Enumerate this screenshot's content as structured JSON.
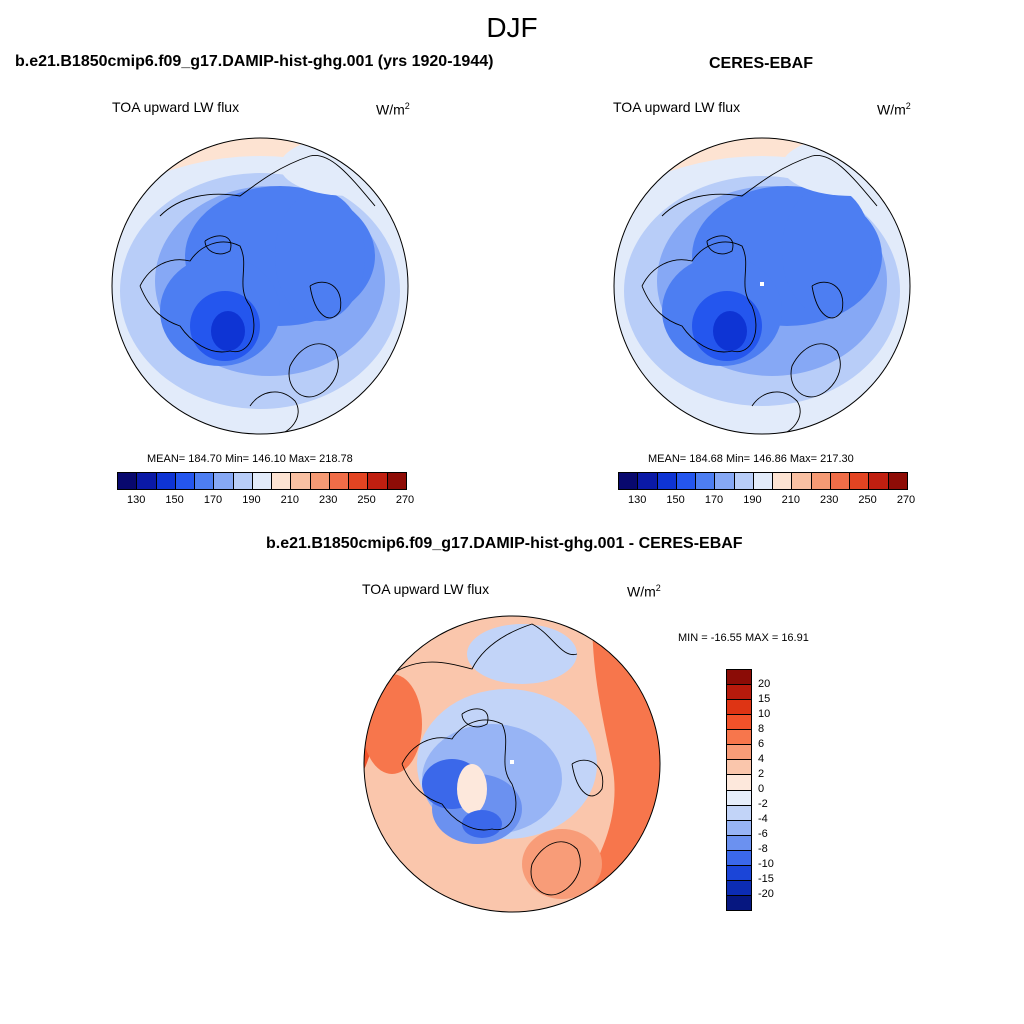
{
  "season": "DJF",
  "panels": [
    {
      "title": "b.e21.B1850cmip6.f09_g17.DAMIP-hist-ghg.001 (yrs 1920-1944)",
      "variable": "TOA upward LW flux",
      "units": "W/m",
      "units_exp": "2",
      "stats": "MEAN= 184.70  Min= 146.10  Max= 218.78"
    },
    {
      "title": "CERES-EBAF",
      "variable": "TOA upward LW flux",
      "units": "W/m",
      "units_exp": "2",
      "stats": "MEAN= 184.68  Min= 146.86  Max= 217.30"
    },
    {
      "title": "b.e21.B1850cmip6.f09_g17.DAMIP-hist-ghg.001 - CERES-EBAF",
      "variable": "TOA upward LW flux",
      "units": "W/m",
      "units_exp": "2",
      "stats": "MIN = -16.55 MAX =  16.91"
    }
  ],
  "abs_colorbar": {
    "labels": [
      "130",
      "150",
      "170",
      "190",
      "210",
      "230",
      "250",
      "270"
    ],
    "colors": [
      "#08086e",
      "#0a19a6",
      "#0e34d4",
      "#2456ee",
      "#4d7ef2",
      "#86a8f5",
      "#b8cdf8",
      "#e2ebfa",
      "#fde3d2",
      "#f9c0a2",
      "#f59a74",
      "#f06d48",
      "#e34422",
      "#c01f10",
      "#8e0c06"
    ]
  },
  "diff_colorbar": {
    "labels": [
      "20",
      "15",
      "10",
      "8",
      "6",
      "4",
      "2",
      "0",
      "-2",
      "-4",
      "-6",
      "-8",
      "-10",
      "-15",
      "-20"
    ],
    "colors": [
      "#8b0c06",
      "#b71a0c",
      "#de3414",
      "#f2522a",
      "#f7764c",
      "#f89c78",
      "#fac6ac",
      "#fde8dc",
      "#e6eefb",
      "#c2d4f8",
      "#97b4f5",
      "#6b91f0",
      "#3b68ea",
      "#1b45d8",
      "#0c2cb4",
      "#061780"
    ]
  },
  "chart_data": [
    {
      "type": "heatmap",
      "title": "b.e21.B1850cmip6.f09_g17.DAMIP-hist-ghg.001 (yrs 1920-1944)",
      "variable": "TOA upward LW flux",
      "units": "W/m2",
      "projection": "north polar stereographic",
      "mean": 184.7,
      "min": 146.1,
      "max": 218.78,
      "colorbar_levels": [
        130,
        140,
        150,
        160,
        170,
        180,
        190,
        200,
        210,
        220,
        230,
        240,
        250,
        260,
        270
      ]
    },
    {
      "type": "heatmap",
      "title": "CERES-EBAF",
      "variable": "TOA upward LW flux",
      "units": "W/m2",
      "projection": "north polar stereographic",
      "mean": 184.68,
      "min": 146.86,
      "max": 217.3,
      "colorbar_levels": [
        130,
        140,
        150,
        160,
        170,
        180,
        190,
        200,
        210,
        220,
        230,
        240,
        250,
        260,
        270
      ]
    },
    {
      "type": "heatmap",
      "title": "b.e21.B1850cmip6.f09_g17.DAMIP-hist-ghg.001 - CERES-EBAF",
      "variable": "TOA upward LW flux",
      "units": "W/m2",
      "projection": "north polar stereographic",
      "min": -16.55,
      "max": 16.91,
      "colorbar_levels": [
        -20,
        -15,
        -10,
        -8,
        -6,
        -4,
        -2,
        0,
        2,
        4,
        6,
        8,
        10,
        15,
        20
      ]
    }
  ]
}
